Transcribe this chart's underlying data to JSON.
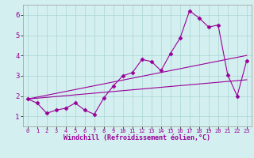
{
  "title": "",
  "xlabel": "Windchill (Refroidissement éolien,°C)",
  "bg_color": "#d4efef",
  "grid_color": "#aad4d4",
  "line_color": "#990099",
  "xlim": [
    -0.5,
    23.5
  ],
  "ylim": [
    0.5,
    6.5
  ],
  "xticks": [
    0,
    1,
    2,
    3,
    4,
    5,
    6,
    7,
    8,
    9,
    10,
    11,
    12,
    13,
    14,
    15,
    16,
    17,
    18,
    19,
    20,
    21,
    22,
    23
  ],
  "yticks": [
    1,
    2,
    3,
    4,
    5,
    6
  ],
  "series1_x": [
    0,
    1,
    2,
    3,
    4,
    5,
    6,
    7,
    8,
    9,
    10,
    11,
    12,
    13,
    14,
    15,
    16,
    17,
    18,
    19,
    20,
    21,
    22,
    23
  ],
  "series1_y": [
    1.85,
    1.65,
    1.15,
    1.3,
    1.4,
    1.65,
    1.3,
    1.1,
    1.9,
    2.5,
    3.0,
    3.15,
    3.8,
    3.7,
    3.25,
    4.1,
    4.85,
    6.2,
    5.85,
    5.4,
    5.5,
    3.05,
    2.0,
    3.75
  ],
  "series2_x": [
    0,
    23
  ],
  "series2_y": [
    1.85,
    4.0
  ],
  "series3_x": [
    0,
    23
  ],
  "series3_y": [
    1.85,
    2.8
  ],
  "xlabel_fontsize": 6,
  "tick_fontsize_x": 5,
  "tick_fontsize_y": 6.5
}
